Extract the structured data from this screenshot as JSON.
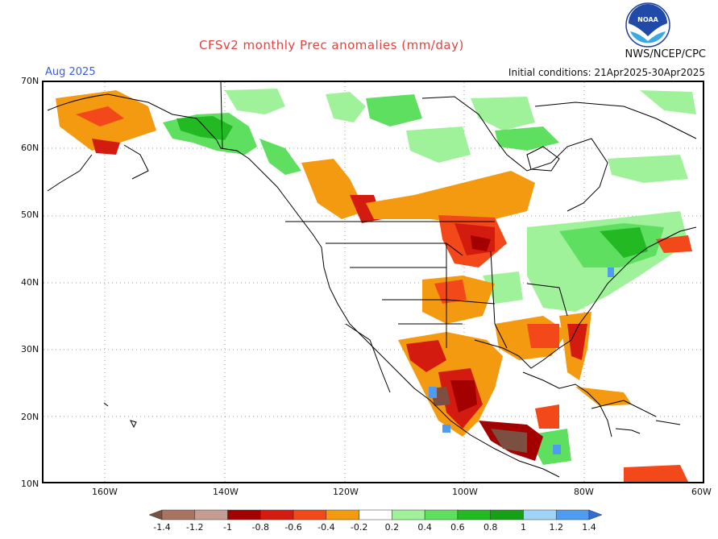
{
  "header": {
    "title": "CFSv2 monthly Prec anomalies (mm/day)",
    "month": "Aug 2025",
    "init_conditions": "Initial conditions: 21Apr2025-30Apr2025",
    "org": "NWS/NCEP/CPC",
    "logo_text": "NOAA"
  },
  "axes": {
    "lat_labels": [
      "70N",
      "60N",
      "50N",
      "40N",
      "30N",
      "20N",
      "10N"
    ],
    "lon_labels": [
      "160W",
      "140W",
      "120W",
      "100W",
      "80W",
      "60W"
    ]
  },
  "legend": {
    "labels": [
      "-1.4",
      "-1.2",
      "-1",
      "-0.8",
      "-0.6",
      "-0.4",
      "-0.2",
      "0.2",
      "0.4",
      "0.6",
      "0.8",
      "1",
      "1.2",
      "1.4"
    ],
    "colors": [
      "#7b4f41",
      "#a77462",
      "#c39d91",
      "#a30000",
      "#d41b0f",
      "#f2481a",
      "#f39a10",
      "#ffffff",
      "#9ff29a",
      "#5fdf5f",
      "#23b923",
      "#16a016",
      "#9fd4f6",
      "#4e9cf1",
      "#2f6edb"
    ]
  },
  "map_colors": {
    "dry_light": "#f39a10",
    "dry_mid": "#f2481a",
    "dry_strong": "#d41b0f",
    "dry_deep": "#a30000",
    "dry_brown": "#7b4f41",
    "wet_light": "#9ff29a",
    "wet_mid": "#5fdf5f",
    "wet_strong": "#23b923",
    "wet_blue": "#4e9cf1"
  }
}
